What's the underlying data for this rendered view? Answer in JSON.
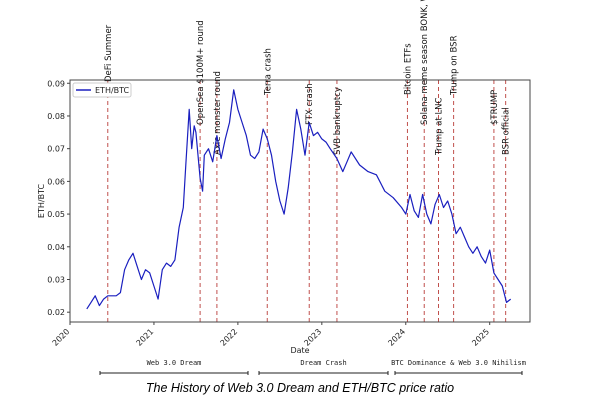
{
  "chart_data": {
    "type": "line",
    "title": "The History of Web 3.0 Dream and ETH/BTC price ratio",
    "xlabel": "Date",
    "ylabel": "ETH/BTC",
    "xlim": [
      2020.0,
      2025.48
    ],
    "ylim": [
      0.017,
      0.091
    ],
    "x_ticks": [
      2020,
      2021,
      2022,
      2023,
      2024,
      2025
    ],
    "x_tick_labels": [
      "2020",
      "2021",
      "2022",
      "2023",
      "2024",
      "2025"
    ],
    "y_ticks": [
      0.02,
      0.03,
      0.04,
      0.05,
      0.06,
      0.07,
      0.08,
      0.09
    ],
    "y_tick_labels": [
      "0.02",
      "0.03",
      "0.04",
      "0.05",
      "0.06",
      "0.07",
      "0.08",
      "0.09"
    ],
    "legend": {
      "position": "top-left",
      "entries": [
        "ETH/BTC"
      ]
    },
    "grid": false,
    "series": [
      {
        "name": "ETH/BTC",
        "color": "#1a1fbf",
        "x": [
          2020.2,
          2020.25,
          2020.3,
          2020.35,
          2020.4,
          2020.45,
          2020.55,
          2020.6,
          2020.65,
          2020.7,
          2020.75,
          2020.8,
          2020.85,
          2020.9,
          2020.95,
          2021.0,
          2021.05,
          2021.1,
          2021.15,
          2021.2,
          2021.25,
          2021.3,
          2021.35,
          2021.38,
          2021.42,
          2021.45,
          2021.48,
          2021.5,
          2021.55,
          2021.58,
          2021.6,
          2021.65,
          2021.7,
          2021.75,
          2021.8,
          2021.85,
          2021.9,
          2021.95,
          2022.0,
          2022.05,
          2022.1,
          2022.15,
          2022.2,
          2022.25,
          2022.3,
          2022.35,
          2022.4,
          2022.45,
          2022.5,
          2022.55,
          2022.6,
          2022.65,
          2022.7,
          2022.75,
          2022.8,
          2022.85,
          2022.9,
          2022.95,
          2023.0,
          2023.05,
          2023.1,
          2023.18,
          2023.25,
          2023.3,
          2023.35,
          2023.45,
          2023.55,
          2023.65,
          2023.75,
          2023.85,
          2023.95,
          2024.0,
          2024.05,
          2024.1,
          2024.15,
          2024.2,
          2024.25,
          2024.3,
          2024.35,
          2024.4,
          2024.45,
          2024.5,
          2024.55,
          2024.6,
          2024.65,
          2024.7,
          2024.75,
          2024.8,
          2024.85,
          2024.9,
          2024.95,
          2025.0,
          2025.05,
          2025.1,
          2025.15,
          2025.2,
          2025.25
        ],
        "y": [
          0.021,
          0.023,
          0.025,
          0.022,
          0.024,
          0.025,
          0.025,
          0.026,
          0.033,
          0.036,
          0.038,
          0.034,
          0.03,
          0.033,
          0.032,
          0.028,
          0.024,
          0.033,
          0.035,
          0.034,
          0.036,
          0.046,
          0.052,
          0.065,
          0.082,
          0.07,
          0.077,
          0.075,
          0.061,
          0.057,
          0.068,
          0.07,
          0.066,
          0.074,
          0.067,
          0.073,
          0.078,
          0.088,
          0.082,
          0.078,
          0.074,
          0.068,
          0.067,
          0.069,
          0.076,
          0.073,
          0.068,
          0.06,
          0.054,
          0.05,
          0.058,
          0.069,
          0.082,
          0.076,
          0.068,
          0.078,
          0.074,
          0.075,
          0.073,
          0.072,
          0.07,
          0.067,
          0.063,
          0.066,
          0.069,
          0.065,
          0.063,
          0.062,
          0.057,
          0.055,
          0.052,
          0.05,
          0.056,
          0.051,
          0.049,
          0.056,
          0.05,
          0.047,
          0.053,
          0.056,
          0.052,
          0.054,
          0.05,
          0.044,
          0.046,
          0.043,
          0.04,
          0.038,
          0.04,
          0.037,
          0.035,
          0.039,
          0.032,
          0.03,
          0.028,
          0.023,
          0.024
        ]
      }
    ],
    "events": [
      {
        "x": 2020.45,
        "label": "DeFi Summer"
      },
      {
        "x": 2021.55,
        "label": "OpenSea $100M+ round"
      },
      {
        "x": 2021.75,
        "label": "Axie monster round"
      },
      {
        "x": 2022.35,
        "label": "Terra crash"
      },
      {
        "x": 2022.85,
        "label": "FTX crash"
      },
      {
        "x": 2023.18,
        "label": "SVB bankruptcy"
      },
      {
        "x": 2024.02,
        "label": "Bitcoin ETFs"
      },
      {
        "x": 2024.22,
        "label": "Solana meme season BONK, WIF"
      },
      {
        "x": 2024.39,
        "label": "Trump at LNC"
      },
      {
        "x": 2024.57,
        "label": "Trump on BSR"
      },
      {
        "x": 2025.05,
        "label": "$TRUMP"
      },
      {
        "x": 2025.19,
        "label": "BSR official"
      }
    ],
    "event_line_color": "#c0504d",
    "periods": [
      {
        "label": "Web 3.0 Dream"
      },
      {
        "label": "Dream Crash"
      },
      {
        "label": "BTC Dominance & Web 3.0 Nihilism"
      }
    ]
  }
}
